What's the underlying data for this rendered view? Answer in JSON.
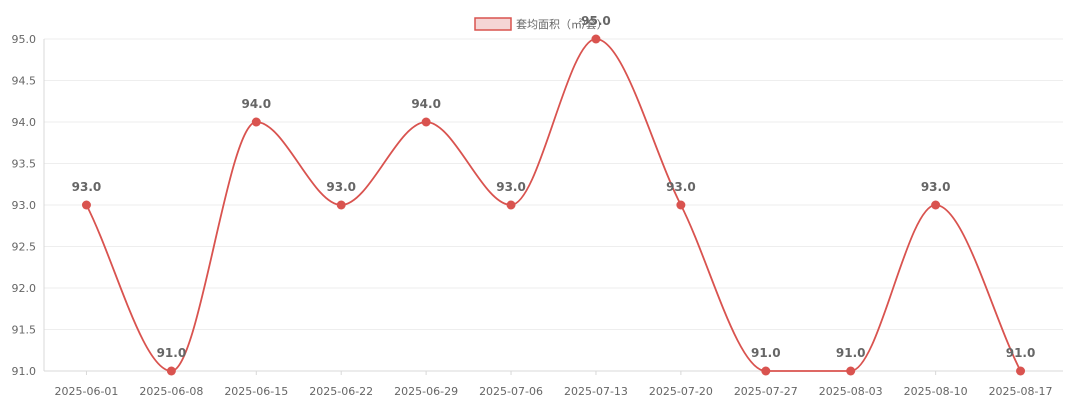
{
  "colors": {
    "line": "#d9534f",
    "legend_fill": "#f5d5d5",
    "grid": "#eeeeee",
    "axis": "#d8d8d8",
    "text": "#666666"
  },
  "chart_data": {
    "type": "line",
    "title": "",
    "xlabel": "",
    "ylabel": "",
    "categories": [
      "2025-06-01",
      "2025-06-08",
      "2025-06-15",
      "2025-06-22",
      "2025-06-29",
      "2025-07-06",
      "2025-07-13",
      "2025-07-20",
      "2025-07-27",
      "2025-08-03",
      "2025-08-10",
      "2025-08-17"
    ],
    "series": [
      {
        "name": "套均面积（㎡/套）",
        "values": [
          93.0,
          91.0,
          94.0,
          93.0,
          94.0,
          93.0,
          95.0,
          93.0,
          91.0,
          91.0,
          93.0,
          91.0
        ],
        "labels": [
          "93.0",
          "91.0",
          "94.0",
          "93.0",
          "94.0",
          "93.0",
          "95.0",
          "93.0",
          "91.0",
          "91.0",
          "93.0",
          "91.0"
        ]
      }
    ],
    "ylim": [
      91.0,
      95.0
    ],
    "yticks": [
      "91.0",
      "91.5",
      "92.0",
      "92.5",
      "93.0",
      "93.5",
      "94.0",
      "94.5",
      "95.0"
    ],
    "legend_position": "top-center",
    "grid": true
  }
}
